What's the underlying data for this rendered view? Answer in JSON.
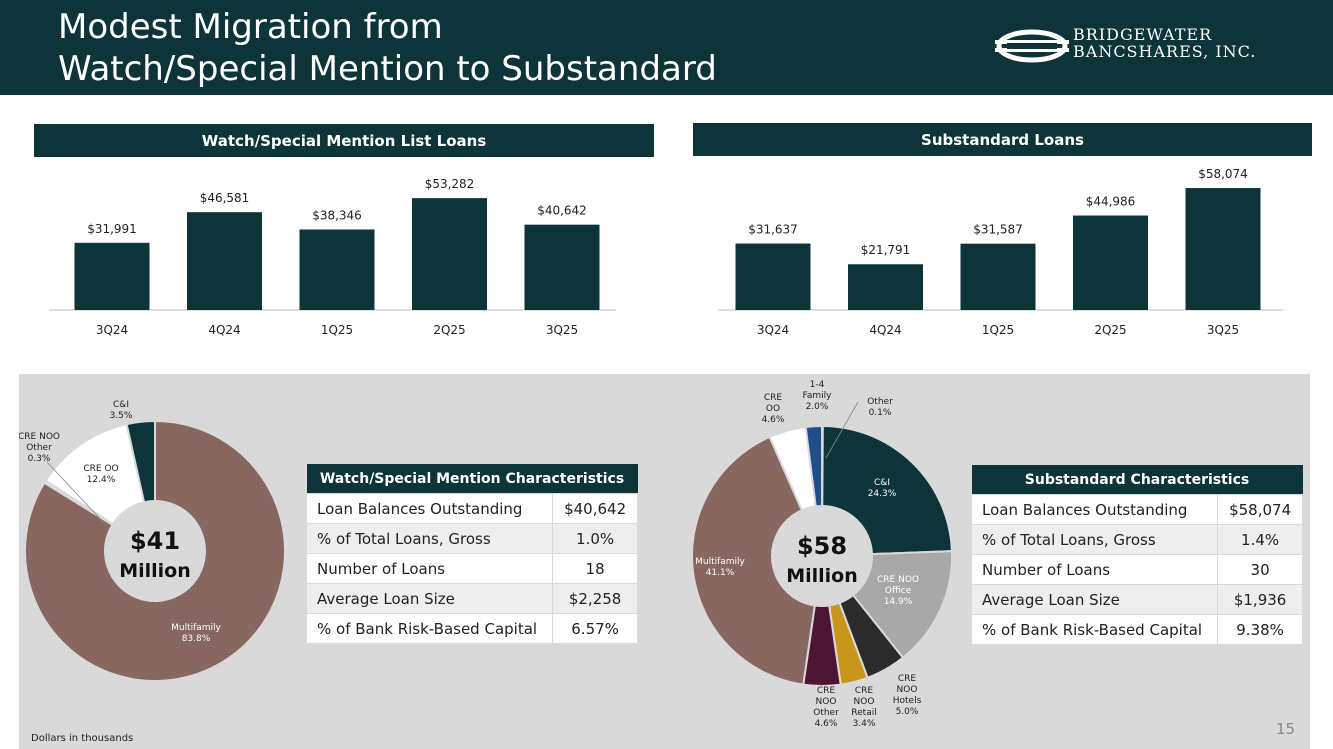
{
  "header": {
    "title_line1": "Modest Migration from",
    "title_line2": "Watch/Special Mention to Substandard",
    "logo_line1": "BRIDGEWATER",
    "logo_line2": "BANCSHARES, INC."
  },
  "colors": {
    "dark": "#0d3439",
    "multifamily": "#876760",
    "cre_oo": "#ffffff",
    "cre_noo_office": "#a8a8a8",
    "cre_noo_hotels": "#2b2b2b",
    "cre_noo_retail": "#c8961a",
    "cre_noo_other": "#4e1533",
    "one_to_four": "#1f4e8c"
  },
  "chart_data": [
    {
      "type": "bar",
      "title": "Watch/Special Mention List Loans",
      "categories": [
        "3Q24",
        "4Q24",
        "1Q25",
        "2Q25",
        "3Q25"
      ],
      "values": [
        31991,
        46581,
        38346,
        53282,
        40642
      ],
      "labels": [
        "$31,991",
        "$46,581",
        "$38,346",
        "$53,282",
        "$40,642"
      ],
      "ylim": [
        0,
        60000
      ]
    },
    {
      "type": "bar",
      "title": "Substandard Loans",
      "categories": [
        "3Q24",
        "4Q24",
        "1Q25",
        "2Q25",
        "3Q25"
      ],
      "values": [
        31637,
        21791,
        31587,
        44986,
        58074
      ],
      "labels": [
        "$31,637",
        "$21,791",
        "$31,587",
        "$44,986",
        "$58,074"
      ],
      "ylim": [
        0,
        60000
      ]
    },
    {
      "type": "pie",
      "title": "$41 Million",
      "center_line1": "$41",
      "center_line2": "Million",
      "slices": [
        {
          "name": "Multifamily",
          "value": 83.8,
          "label": "83.8%",
          "color": "#876760",
          "lines": [
            "Multifamily",
            "83.8%"
          ]
        },
        {
          "name": "CRE NOO Other",
          "value": 0.3,
          "label": "0.3%",
          "color": "#ffffff",
          "lines": [
            "CRE NOO",
            "Other",
            "0.3%"
          ]
        },
        {
          "name": "CRE OO",
          "value": 12.4,
          "label": "12.4%",
          "color": "#ffffff",
          "lines": [
            "CRE OO",
            "12.4%"
          ]
        },
        {
          "name": "C&I",
          "value": 3.5,
          "label": "3.5%",
          "color": "#0d3439",
          "lines": [
            "C&I",
            "3.5%"
          ]
        }
      ]
    },
    {
      "type": "pie",
      "title": "$58 Million",
      "center_line1": "$58",
      "center_line2": "Million",
      "slices": [
        {
          "name": "Other",
          "value": 0.1,
          "label": "0.1%",
          "color": "#ffffff",
          "lines": [
            "Other",
            "0.1%"
          ]
        },
        {
          "name": "C&I",
          "value": 24.3,
          "label": "24.3%",
          "color": "#0d3439",
          "lines": [
            "C&I",
            "24.3%"
          ]
        },
        {
          "name": "CRE NOO Office",
          "value": 14.9,
          "label": "14.9%",
          "color": "#a8a8a8",
          "lines": [
            "CRE NOO",
            "Office",
            "14.9%"
          ]
        },
        {
          "name": "CRE NOO Hotels",
          "value": 5.0,
          "label": "5.0%",
          "color": "#2b2b2b",
          "lines": [
            "CRE",
            "NOO",
            "Hotels",
            "5.0%"
          ]
        },
        {
          "name": "CRE NOO Retail",
          "value": 3.4,
          "label": "3.4%",
          "color": "#c8961a",
          "lines": [
            "CRE",
            "NOO",
            "Retail",
            "3.4%"
          ]
        },
        {
          "name": "CRE NOO Other",
          "value": 4.6,
          "label": "4.6%",
          "color": "#4e1533",
          "lines": [
            "CRE",
            "NOO",
            "Other",
            "4.6%"
          ]
        },
        {
          "name": "Multifamily",
          "value": 41.1,
          "label": "41.1%",
          "color": "#876760",
          "lines": [
            "Multifamily",
            "41.1%"
          ]
        },
        {
          "name": "CRE OO",
          "value": 4.6,
          "label": "4.6%",
          "color": "#ffffff",
          "lines": [
            "CRE",
            "OO",
            "4.6%"
          ]
        },
        {
          "name": "1-4 Family",
          "value": 2.0,
          "label": "2.0%",
          "color": "#1f4e8c",
          "lines": [
            "1-4",
            "Family",
            "2.0%"
          ]
        }
      ]
    }
  ],
  "watch_table": {
    "title": "Watch/Special Mention Characteristics",
    "rows": [
      {
        "label": "Loan Balances Outstanding",
        "value": "$40,642"
      },
      {
        "label": "% of Total Loans, Gross",
        "value": "1.0%"
      },
      {
        "label": "Number of Loans",
        "value": "18"
      },
      {
        "label": "Average Loan Size",
        "value": "$2,258"
      },
      {
        "label": "% of Bank Risk-Based Capital",
        "value": "6.57%"
      }
    ]
  },
  "sub_table": {
    "title": "Substandard Characteristics",
    "rows": [
      {
        "label": "Loan Balances Outstanding",
        "value": "$58,074"
      },
      {
        "label": "% of Total Loans, Gross",
        "value": "1.4%"
      },
      {
        "label": "Number of Loans",
        "value": "30"
      },
      {
        "label": "Average Loan Size",
        "value": "$1,936"
      },
      {
        "label": "% of Bank Risk-Based Capital",
        "value": "9.38%"
      }
    ]
  },
  "footnote": "Dollars in thousands",
  "page_number": "15"
}
